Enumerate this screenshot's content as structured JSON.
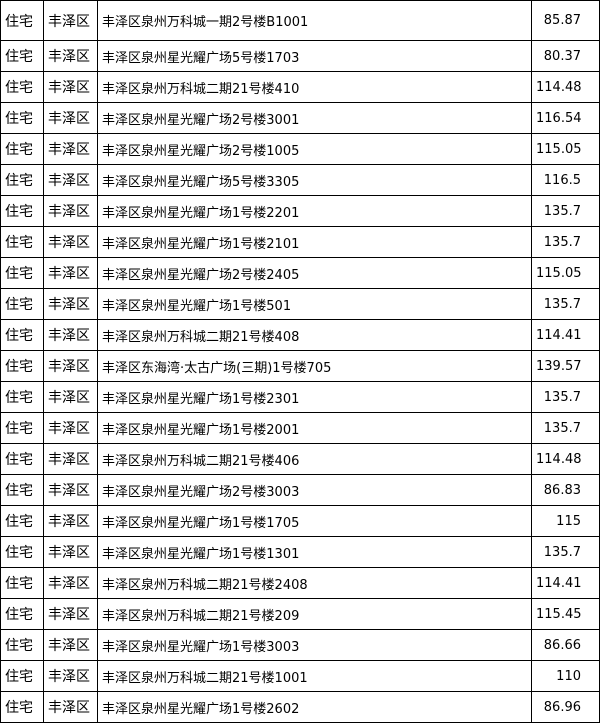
{
  "table": {
    "rows": [
      [
        "住宅",
        "丰泽区",
        "丰泽区泉州万科城一期2号楼B1001",
        85.87
      ],
      [
        "住宅",
        "丰泽区",
        "丰泽区泉州星光耀广场5号楼1703",
        80.37
      ],
      [
        "住宅",
        "丰泽区",
        "丰泽区泉州万科城二期21号楼410",
        114.48
      ],
      [
        "住宅",
        "丰泽区",
        "丰泽区泉州星光耀广场2号楼3001",
        116.54
      ],
      [
        "住宅",
        "丰泽区",
        "丰泽区泉州星光耀广场2号楼1005",
        115.05
      ],
      [
        "住宅",
        "丰泽区",
        "丰泽区泉州星光耀广场5号楼3305",
        116.5
      ],
      [
        "住宅",
        "丰泽区",
        "丰泽区泉州星光耀广场1号楼2201",
        135.7
      ],
      [
        "住宅",
        "丰泽区",
        "丰泽区泉州星光耀广场1号楼2101",
        135.7
      ],
      [
        "住宅",
        "丰泽区",
        "丰泽区泉州星光耀广场2号楼2405",
        115.05
      ],
      [
        "住宅",
        "丰泽区",
        "丰泽区泉州星光耀广场1号楼501",
        135.7
      ],
      [
        "住宅",
        "丰泽区",
        "丰泽区泉州万科城二期21号楼408",
        114.41
      ],
      [
        "住宅",
        "丰泽区",
        "丰泽区东海湾·太古广场(三期)1号楼705",
        139.57
      ],
      [
        "住宅",
        "丰泽区",
        "丰泽区泉州星光耀广场1号楼2301",
        135.7
      ],
      [
        "住宅",
        "丰泽区",
        "丰泽区泉州星光耀广场1号楼2001",
        135.7
      ],
      [
        "住宅",
        "丰泽区",
        "丰泽区泉州万科城二期21号楼406",
        114.48
      ],
      [
        "住宅",
        "丰泽区",
        "丰泽区泉州星光耀广场2号楼3003",
        86.83
      ],
      [
        "住宅",
        "丰泽区",
        "丰泽区泉州星光耀广场1号楼1705",
        115
      ],
      [
        "住宅",
        "丰泽区",
        "丰泽区泉州星光耀广场1号楼1301",
        135.7
      ],
      [
        "住宅",
        "丰泽区",
        "丰泽区泉州万科城二期21号楼2408",
        114.41
      ],
      [
        "住宅",
        "丰泽区",
        "丰泽区泉州万科城二期21号楼209",
        115.45
      ],
      [
        "住宅",
        "丰泽区",
        "丰泽区泉州星光耀广场1号楼3003",
        86.66
      ],
      [
        "住宅",
        "丰泽区",
        "丰泽区泉州万科城二期21号楼1001",
        110
      ],
      [
        "住宅",
        "丰泽区",
        "丰泽区泉州星光耀广场1号楼2602",
        86.96
      ]
    ]
  }
}
